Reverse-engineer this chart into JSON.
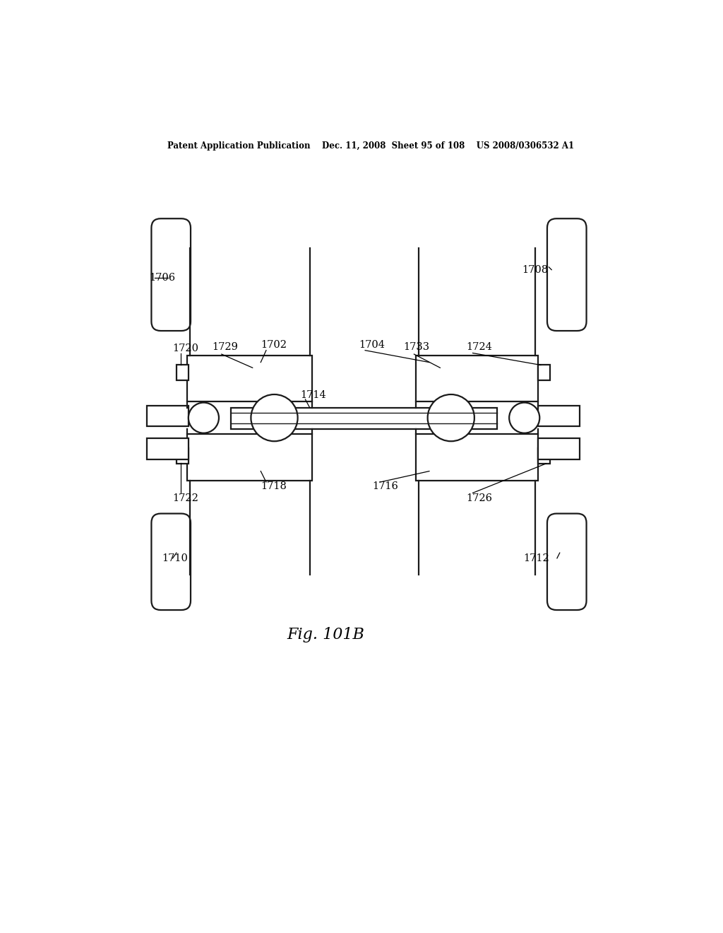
{
  "bg_color": "#ffffff",
  "header_text": "Patent Application Publication    Dec. 11, 2008  Sheet 95 of 108    US 2008/0306532 A1",
  "fig_label": "Fig. 101B",
  "line_color": "#1a1a1a",
  "lw": 1.6,
  "lw_thin": 1.0
}
